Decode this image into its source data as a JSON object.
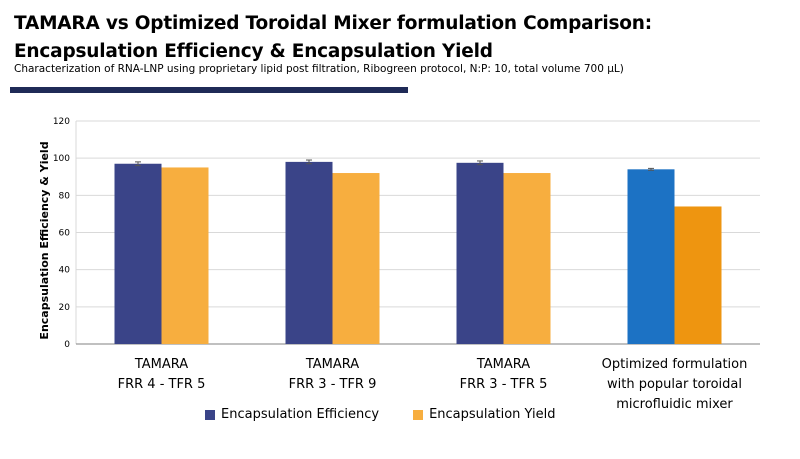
{
  "header": {
    "title_line1": "TAMARA vs Optimized Toroidal Mixer formulation Comparison:",
    "title_line2": "Encapsulation Efficiency & Encapsulation Yield",
    "subtitle": "Characterization of RNA-LNP using proprietary lipid post filtration, Ribogreen protocol, N:P: 10, total volume 700 µL)"
  },
  "colors": {
    "efficiency": "#3a4488",
    "yield": "#f7ae3f",
    "efficiency_highlight": "#1c72c4",
    "yield_highlight": "#ee9510",
    "rule": "#1f2a57",
    "grid": "#d9d9d9",
    "axis": "#808080"
  },
  "chart_data": {
    "type": "bar",
    "title": "",
    "xlabel": "",
    "ylabel": "Encapsulation Efficiency & Yield",
    "ylim": [
      0,
      120
    ],
    "yticks": [
      0,
      20,
      40,
      60,
      80,
      100,
      120
    ],
    "grid": true,
    "legend_position": "bottom",
    "categories": [
      [
        "TAMARA",
        "FRR 4 - TFR 5"
      ],
      [
        "TAMARA",
        "FRR 3 - TFR 9"
      ],
      [
        "TAMARA",
        "FRR 3 - TFR 5"
      ],
      [
        "Optimized formulation",
        "with popular toroidal",
        "microfluidic mixer"
      ]
    ],
    "series": [
      {
        "name": "Encapsulation Efficiency",
        "values": [
          97,
          98,
          97.5,
          94
        ],
        "errors": [
          1,
          1,
          1,
          0.5
        ]
      },
      {
        "name": "Encapsulation Yield",
        "values": [
          95,
          92,
          92,
          74
        ]
      }
    ],
    "highlighted_category_index": 3
  }
}
